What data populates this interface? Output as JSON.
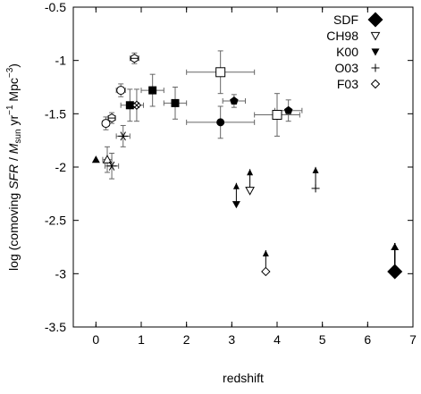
{
  "chart_data": {
    "type": "scatter",
    "xlabel": "redshift",
    "ylabel_parts": {
      "prefix": "log (comoving ",
      "sfr": "SFR",
      "slash": " / ",
      "m": "M",
      "msub": "sun",
      "unit": " yr",
      "exp1": "−1",
      "mpc": " Mpc",
      "exp2": "−3",
      "close": ")"
    },
    "xlim": [
      -0.5,
      7
    ],
    "ylim": [
      -3.5,
      -0.5
    ],
    "xticks": [
      "0",
      "1",
      "2",
      "3",
      "4",
      "5",
      "6",
      "7"
    ],
    "yticks": [
      "-0.5",
      "-1",
      "-1.5",
      "-2",
      "-2.5",
      "-3",
      "-3.5"
    ],
    "legend_position": "top-right",
    "legend": [
      {
        "label": "SDF",
        "marker": "diamond-filled-large"
      },
      {
        "label": "CH98",
        "marker": "triangle-down-open"
      },
      {
        "label": "K00",
        "marker": "triangle-down-filled"
      },
      {
        "label": "O03",
        "marker": "plus"
      },
      {
        "label": "F03",
        "marker": "diamond-open"
      }
    ],
    "series": [
      {
        "marker": "diamond-filled-large",
        "points": [
          {
            "x": 6.6,
            "y": -2.98,
            "lower_limit": true
          }
        ]
      },
      {
        "marker": "diamond-open",
        "points": [
          {
            "x": 3.75,
            "y": -2.98,
            "lower_limit": true
          }
        ]
      },
      {
        "marker": "triangle-down-open",
        "points": [
          {
            "x": 3.4,
            "y": -2.22,
            "lower_limit": true
          }
        ]
      },
      {
        "marker": "triangle-down-filled",
        "points": [
          {
            "x": 3.1,
            "y": -2.35,
            "lower_limit": true
          }
        ]
      },
      {
        "marker": "plus",
        "points": [
          {
            "x": 4.85,
            "y": -2.2,
            "lower_limit": true
          }
        ]
      },
      {
        "marker": "square-filled",
        "points": [
          {
            "x": 0.75,
            "y": -1.42,
            "xerr": 0.2,
            "yerr": 0.15
          },
          {
            "x": 1.25,
            "y": -1.28,
            "xerr": 0.25,
            "yerr": 0.15
          },
          {
            "x": 1.75,
            "y": -1.4,
            "xerr": 0.25,
            "yerr": 0.15
          }
        ]
      },
      {
        "marker": "square-open",
        "points": [
          {
            "x": 2.75,
            "y": -1.11,
            "xerr": 0.75,
            "yerr": 0.2
          },
          {
            "x": 4.0,
            "y": -1.51,
            "xerr": 0.5,
            "yerr": 0.2
          }
        ]
      },
      {
        "marker": "circle-filled",
        "points": [
          {
            "x": 2.75,
            "y": -1.58,
            "xerr": 0.75,
            "yerr": 0.15
          }
        ]
      },
      {
        "marker": "circle-open",
        "points": [
          {
            "x": 0.22,
            "y": -1.59,
            "xerr": 0.08,
            "yerr": 0.06
          },
          {
            "x": 0.55,
            "y": -1.28,
            "xerr": 0.1,
            "yerr": 0.06
          }
        ]
      },
      {
        "marker": "hex-open",
        "points": [
          {
            "x": 0.35,
            "y": -1.54,
            "xerr": 0.08,
            "yerr": 0.05
          },
          {
            "x": 0.85,
            "y": -0.98,
            "xerr": 0.1,
            "yerr": 0.05
          }
        ]
      },
      {
        "marker": "pentagon-filled",
        "points": [
          {
            "x": 3.05,
            "y": -1.38,
            "xerr": 0.25,
            "yerr": 0.06
          },
          {
            "x": 4.25,
            "y": -1.47,
            "xerr": 0.3,
            "yerr": 0.1
          }
        ]
      },
      {
        "marker": "triangle-up-filled",
        "points": [
          {
            "x": 0.0,
            "y": -1.93
          }
        ]
      },
      {
        "marker": "triangle-up-open",
        "points": [
          {
            "x": 0.25,
            "y": -1.93,
            "xerr": 0.1,
            "yerr": 0.12
          }
        ]
      },
      {
        "marker": "asterisk",
        "points": [
          {
            "x": 0.6,
            "y": -1.71,
            "xerr": 0.15,
            "yerr": 0.1
          },
          {
            "x": 0.35,
            "y": -1.99,
            "xerr": 0.15,
            "yerr": 0.12
          }
        ]
      },
      {
        "marker": "diamond-x",
        "points": [
          {
            "x": 0.9,
            "y": -1.42,
            "xerr": 0.15,
            "yerr": 0.15
          }
        ]
      }
    ]
  }
}
